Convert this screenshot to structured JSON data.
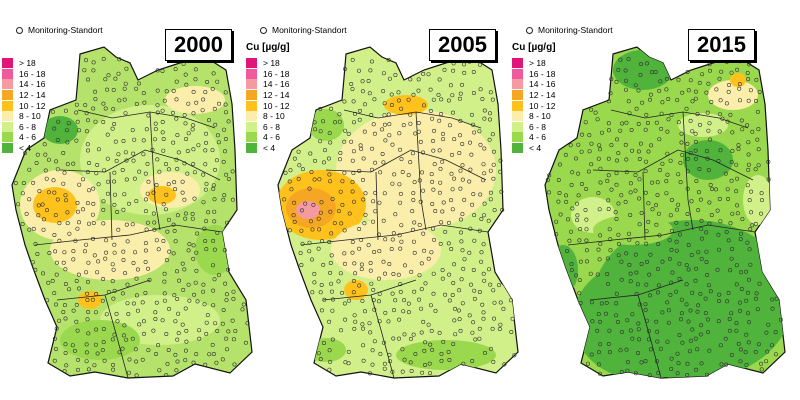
{
  "station_label": "Monitoring-Standort",
  "legend_title": "Cu [µg/g]",
  "legend_items": [
    {
      "label": "> 18",
      "color": "#e0157a"
    },
    {
      "label": "16 - 18",
      "color": "#f05a9c"
    },
    {
      "label": "14 - 16",
      "color": "#f59aa0"
    },
    {
      "label": "12 - 14",
      "color": "#f5a623"
    },
    {
      "label": "10 - 12",
      "color": "#ffc21c"
    },
    {
      "label": "8 - 10",
      "color": "#fbeeaa"
    },
    {
      "label": "6 - 8",
      "color": "#d2f08a"
    },
    {
      "label": "4 - 6",
      "color": "#9ad84d"
    },
    {
      "label": "< 4",
      "color": "#4fb33c"
    }
  ],
  "panels": [
    {
      "year": "2000",
      "show_legend_title": false,
      "base_class": "4 - 6"
    },
    {
      "year": "2005",
      "show_legend_title": true,
      "base_class": "6 - 8"
    },
    {
      "year": "2015",
      "show_legend_title": true,
      "base_class": "4 - 6"
    }
  ]
}
